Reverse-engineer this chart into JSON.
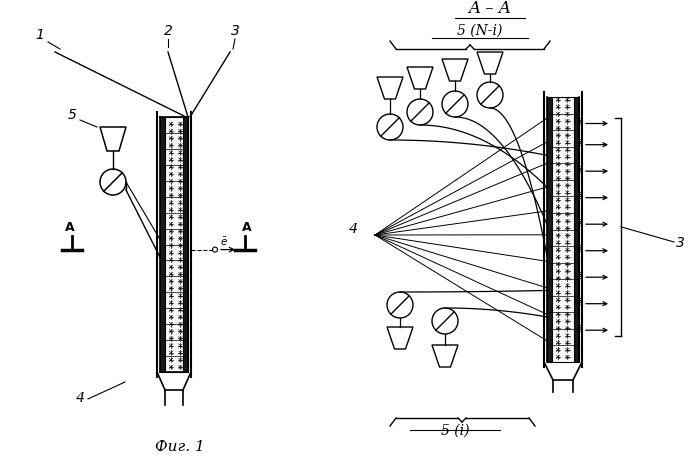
{
  "fig_caption": "Фиг. 1",
  "fig_width": 7.0,
  "fig_height": 4.67,
  "bg_color": "#ffffff",
  "line_color": "#000000",
  "section_title": "A – A",
  "label_5Ni": "5 (N-i)",
  "label_5i": "5 (i)",
  "label_1": "1",
  "label_2": "2",
  "label_3": "3",
  "label_4": "4",
  "label_5": "5"
}
